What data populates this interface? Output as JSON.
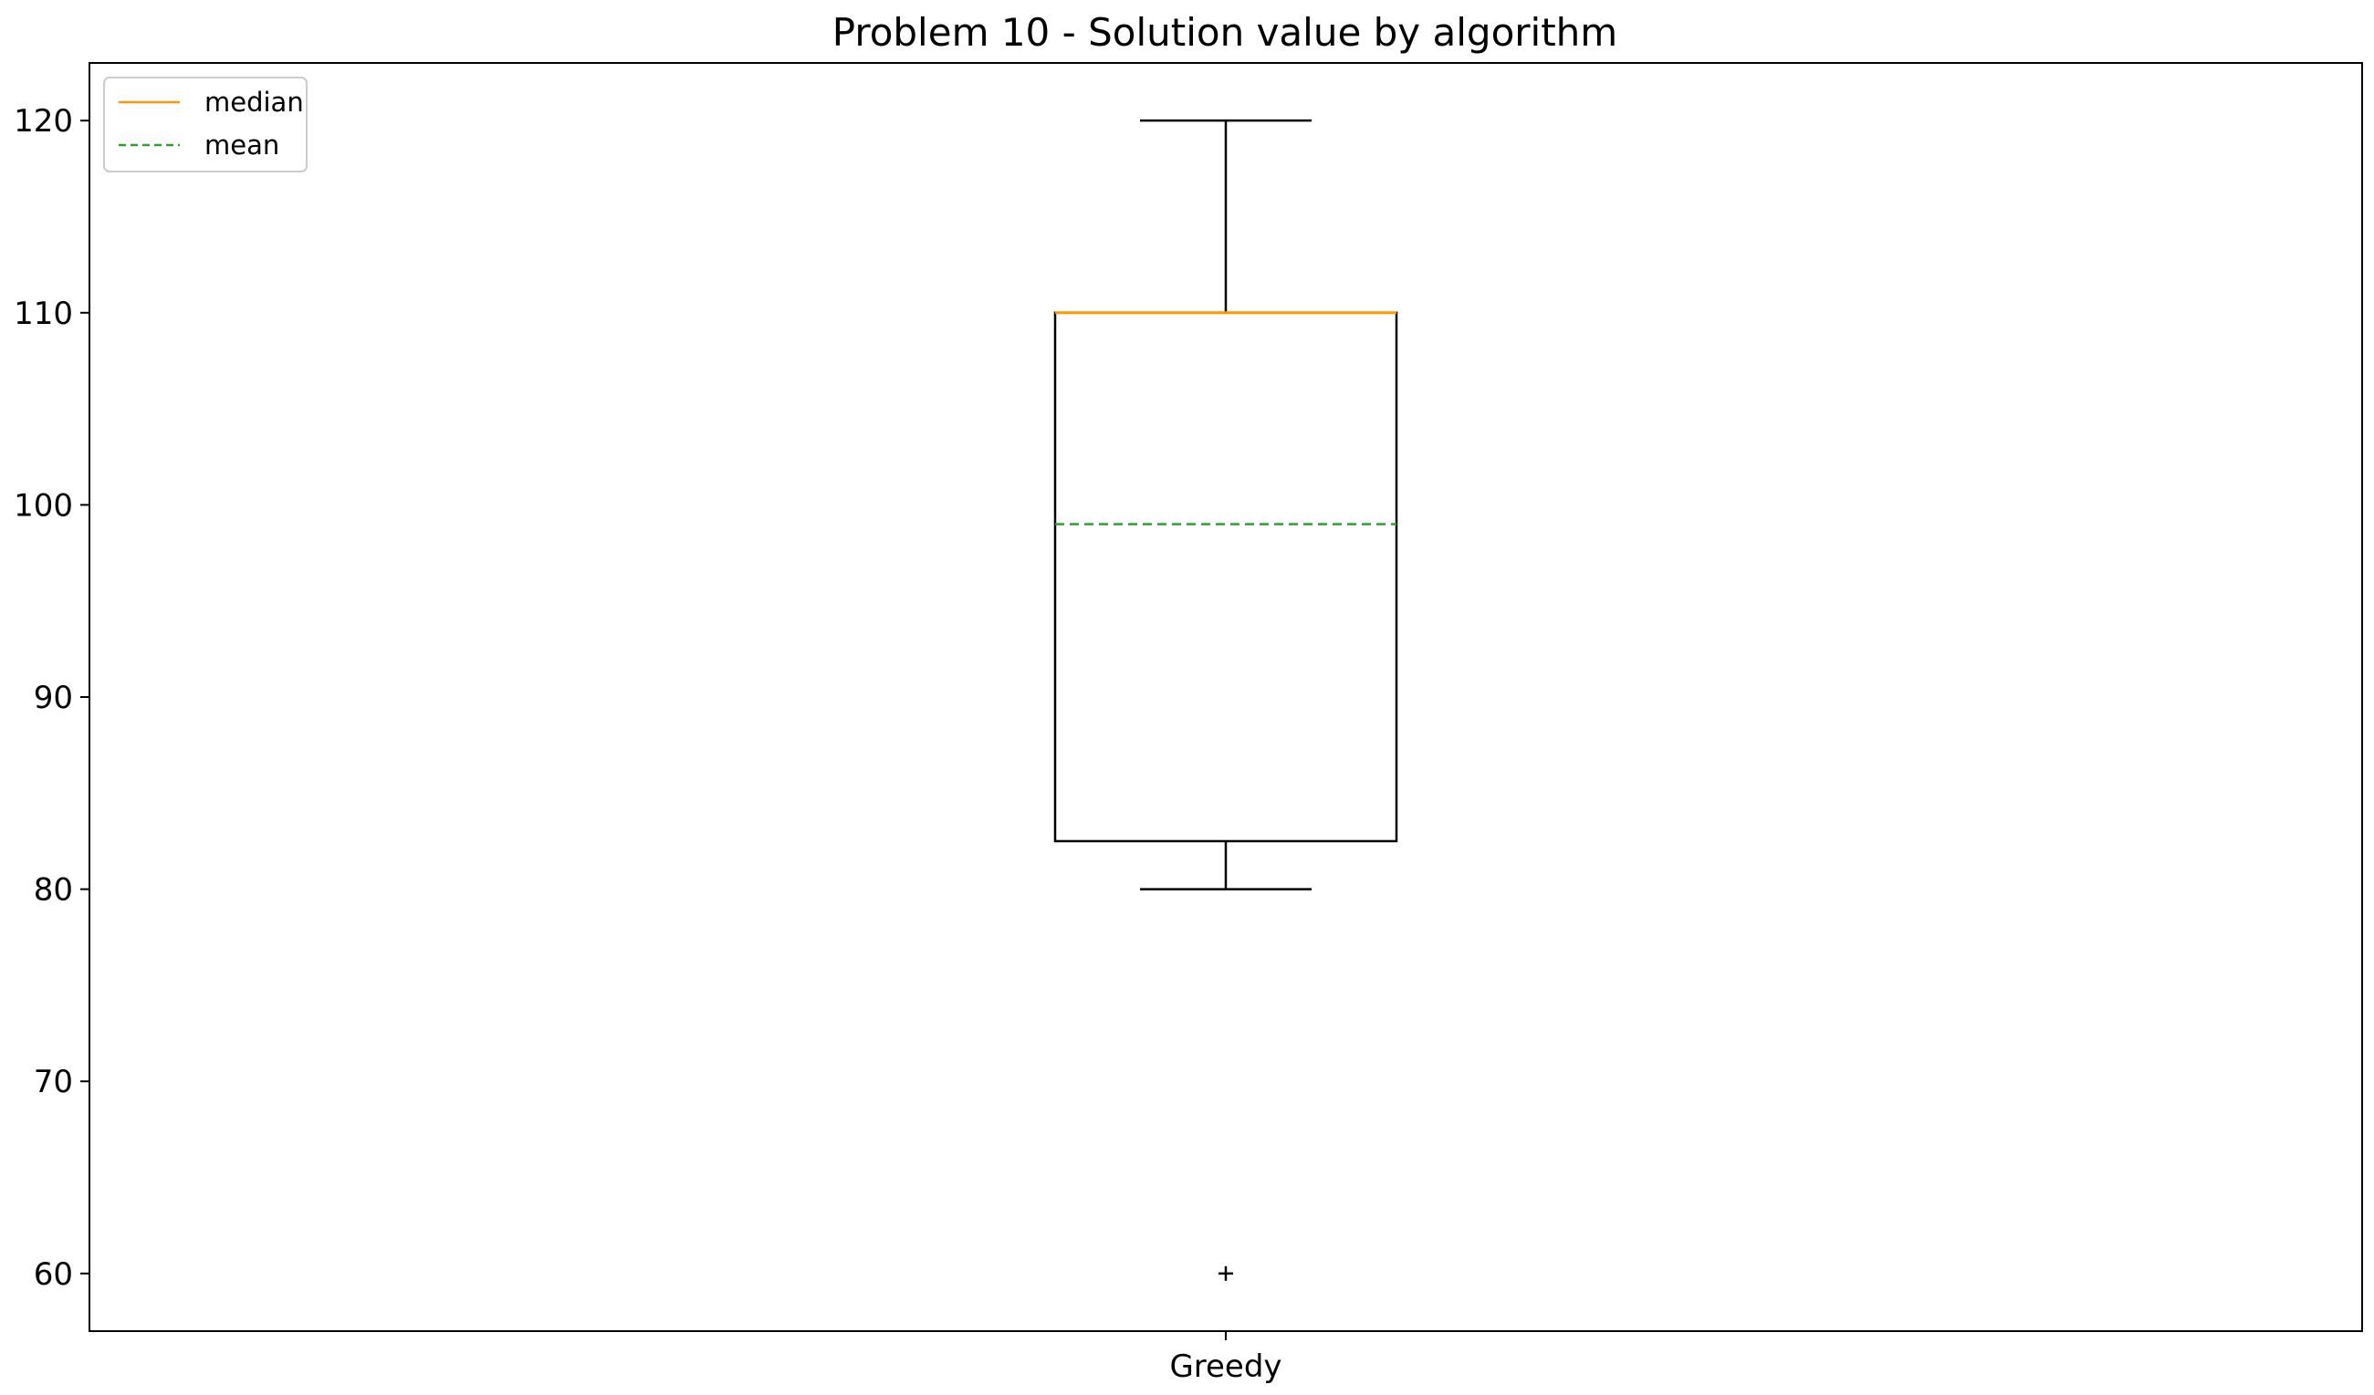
{
  "chart_data": {
    "type": "box",
    "title": "Problem 10 - Solution value by algorithm",
    "xlabel": "",
    "ylabel": "",
    "ylim": [
      57,
      123
    ],
    "yticks": [
      60,
      70,
      80,
      90,
      100,
      110,
      120
    ],
    "grid": false,
    "legend_position": "top-left",
    "legend": [
      {
        "label": "median",
        "style": "solid",
        "color": "#ff9900"
      },
      {
        "label": "mean",
        "style": "dashed",
        "color": "#2ca02c"
      }
    ],
    "categories": [
      "Greedy"
    ],
    "boxes": [
      {
        "category": "Greedy",
        "whisker_low": 80,
        "q1": 82.5,
        "median": 110,
        "q3": 110,
        "whisker_high": 120,
        "mean": 99,
        "outliers": [
          60
        ]
      }
    ],
    "colors": {
      "median": "#ff9900",
      "mean": "#2ca02c",
      "box": "#000000"
    }
  }
}
